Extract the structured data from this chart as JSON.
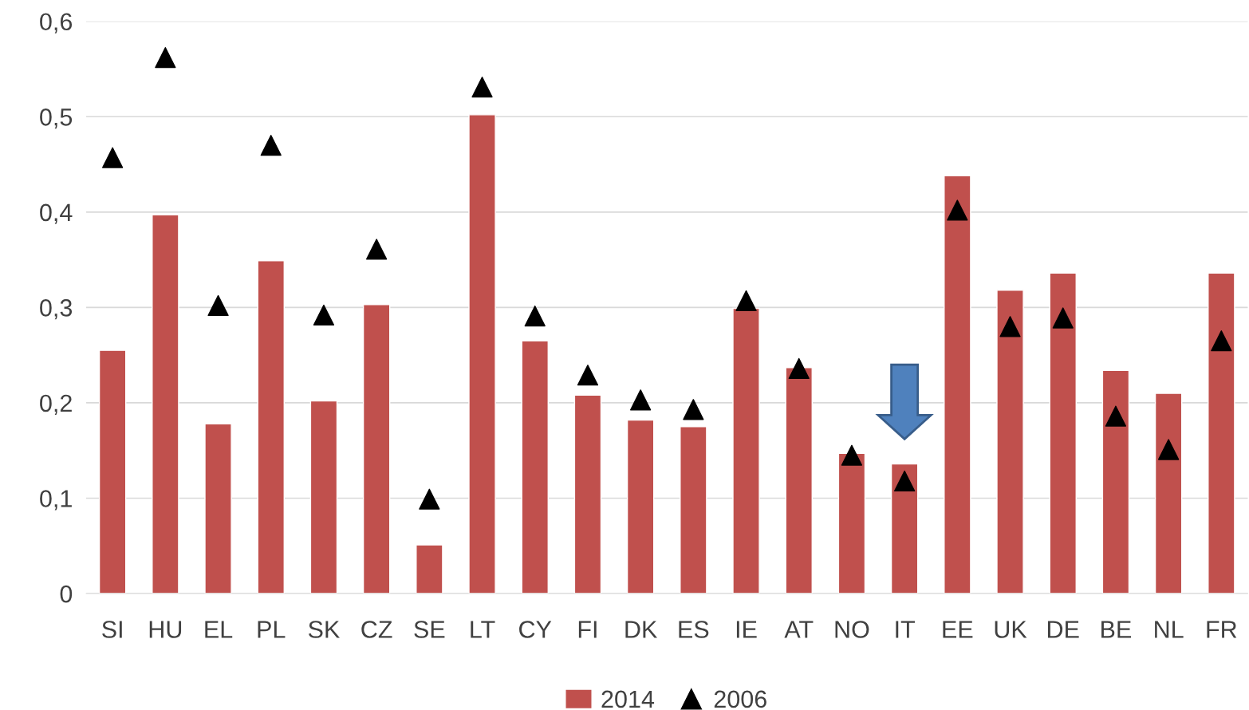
{
  "chart_data": {
    "type": "bar",
    "categories": [
      "SI",
      "HU",
      "EL",
      "PL",
      "SK",
      "CZ",
      "SE",
      "LT",
      "CY",
      "FI",
      "DK",
      "ES",
      "IE",
      "AT",
      "NO",
      "IT",
      "EE",
      "UK",
      "DE",
      "BE",
      "NL",
      "FR"
    ],
    "series": [
      {
        "name": "2014",
        "color": "#c0504d",
        "values": [
          0.255,
          0.397,
          0.178,
          0.349,
          0.202,
          0.303,
          0.051,
          0.502,
          0.265,
          0.208,
          0.182,
          0.175,
          0.299,
          0.237,
          0.147,
          0.136,
          0.438,
          0.318,
          0.336,
          0.234,
          0.21,
          0.336
        ]
      },
      {
        "name": "2006",
        "type": "scatter",
        "color": "#000000",
        "marker": "triangle",
        "values": [
          0.457,
          0.562,
          0.302,
          0.47,
          0.292,
          0.361,
          0.099,
          0.531,
          0.291,
          0.229,
          0.203,
          0.193,
          0.307,
          0.236,
          0.145,
          0.118,
          0.402,
          0.28,
          0.289,
          0.186,
          0.151,
          0.265
        ]
      }
    ],
    "ylim": [
      0,
      0.6
    ],
    "yticks": [
      0,
      {
        "value": 0.1,
        "label": "0,1"
      },
      {
        "value": 0.2,
        "label": "0,2"
      },
      {
        "value": 0.3,
        "label": "0,3"
      },
      {
        "value": 0.4,
        "label": "0,4"
      },
      {
        "value": 0.5,
        "label": "0,5"
      },
      {
        "value": 0.6,
        "label": "0,6"
      }
    ],
    "grid": "y",
    "legend": "bottom"
  }
}
